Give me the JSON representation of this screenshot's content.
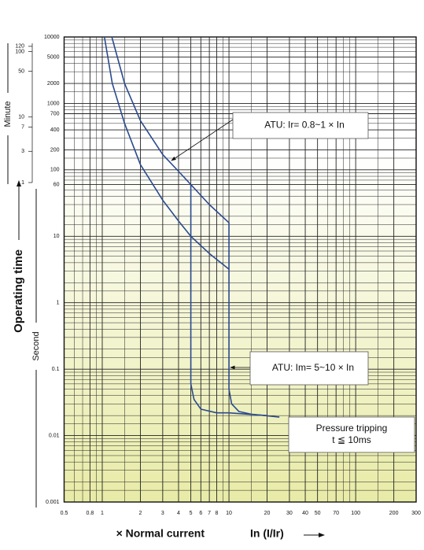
{
  "chart_data": {
    "type": "line",
    "ylabel": "Operating time",
    "y_unit_label": "Second",
    "y2_unit_label": "Minute",
    "xlabel": "× Normal current",
    "xlabel_unit": "In (I/Ir)",
    "log_x": true,
    "log_y": true,
    "grid": true,
    "xlim": [
      0.5,
      300
    ],
    "ylim": [
      0.001,
      10000
    ],
    "y2lim": [
      1,
      166.67
    ],
    "xticks": [
      0.5,
      0.8,
      1,
      2,
      3,
      4,
      5,
      6,
      7,
      8,
      10,
      20,
      30,
      40,
      50,
      70,
      100,
      200,
      300
    ],
    "yticks": [
      0.001,
      0.01,
      0.1,
      1,
      10,
      60,
      100,
      200,
      400,
      700,
      1000,
      2000,
      5000,
      10000
    ],
    "y2ticks": [
      1,
      3,
      7,
      10,
      50,
      100,
      120
    ],
    "x_minor_ticks": [
      0.6,
      0.7,
      0.9,
      1.5,
      9,
      15,
      60,
      80,
      90,
      150
    ],
    "y_minor_ticks": [
      1500,
      3000,
      4000,
      6000,
      7000,
      8000,
      9000,
      150,
      300,
      500,
      600,
      800,
      900,
      15,
      20,
      30,
      40,
      50,
      70,
      80,
      90,
      1.5,
      2,
      3,
      4,
      5,
      6,
      7,
      8,
      9,
      0.15,
      0.2,
      0.3,
      0.4,
      0.5,
      0.6,
      0.7,
      0.8,
      0.9,
      0.015,
      0.02,
      0.03,
      0.04,
      0.05,
      0.06,
      0.07,
      0.08,
      0.09,
      0.0015,
      0.002,
      0.003,
      0.004,
      0.005,
      0.006,
      0.007,
      0.008,
      0.009
    ],
    "series": [
      {
        "color": "#2b4a8e",
        "x": [
          1.19,
          1.5,
          2,
          3,
          4,
          5,
          7,
          10,
          10,
          10.5,
          12,
          15,
          25
        ],
        "values": [
          10000,
          2000,
          550,
          170,
          95,
          60,
          30,
          16,
          0.05,
          0.03,
          0.023,
          0.021,
          0.019
        ]
      },
      {
        "color": "#2b4a8e",
        "x": [
          1.04,
          1.2,
          1.5,
          2,
          3,
          4,
          5,
          7,
          10
        ],
        "values": [
          10000,
          2000,
          500,
          120,
          35,
          17,
          10,
          5.5,
          3.2
        ]
      },
      {
        "color": "#2b4a8e",
        "x": [
          5,
          5,
          5.3,
          6,
          8,
          10,
          20
        ],
        "values": [
          60,
          0.06,
          0.035,
          0.025,
          0.022,
          0.022,
          0.02
        ]
      }
    ],
    "annotations": [
      {
        "lines": [
          "ATU: Ir= 0.8~1 × In"
        ]
      },
      {
        "lines": [
          "ATU: Im= 5~10 × In"
        ]
      },
      {
        "lines": [
          "Pressure tripping",
          "t ≦ 10ms"
        ]
      }
    ]
  }
}
